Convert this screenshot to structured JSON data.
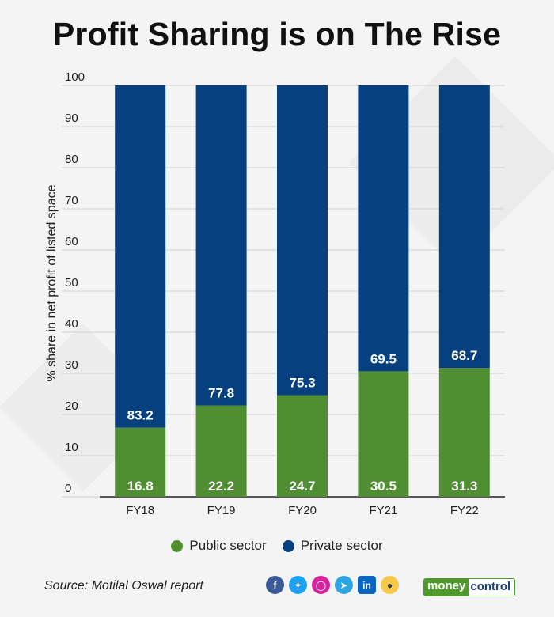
{
  "title": "Profit Sharing is on The Rise",
  "chart_data": {
    "type": "bar",
    "stacked": true,
    "categories": [
      "FY18",
      "FY19",
      "FY20",
      "FY21",
      "FY22"
    ],
    "series": [
      {
        "name": "Public sector",
        "values": [
          16.8,
          22.2,
          24.7,
          30.5,
          31.3
        ],
        "color": "#4f8f32"
      },
      {
        "name": "Private sector",
        "values": [
          83.2,
          77.8,
          75.3,
          69.5,
          68.7
        ],
        "color": "#07407e"
      }
    ],
    "ylabel": "% share in net profit of listed space",
    "xlabel": "",
    "ylim": [
      0,
      100
    ],
    "yticks": [
      0,
      10,
      20,
      30,
      40,
      50,
      60,
      70,
      80,
      90,
      100
    ],
    "grid": true,
    "legend_position": "bottom"
  },
  "source": "Source: Motilal Oswal report",
  "social_icons": [
    "facebook-icon",
    "twitter-icon",
    "instagram-icon",
    "telegram-icon",
    "linkedin-icon",
    "koo-icon"
  ],
  "brand": {
    "part1": "money",
    "part2": "control"
  }
}
